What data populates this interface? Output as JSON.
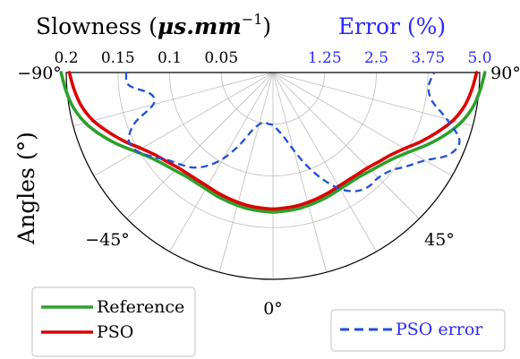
{
  "chart_data": {
    "type": "line",
    "projection": "polar-half",
    "left_axis": {
      "title": "Slowness (μs.mm⁻¹)",
      "title_main": "Slowness (",
      "title_mu": "μs.mm",
      "title_exp": "−1",
      "title_close": ")",
      "range": [
        0,
        0.2
      ],
      "direction": "decreasing-outward-left",
      "tick_labels": [
        "0.2",
        "0.15",
        "0.1",
        "0.05"
      ],
      "tick_values": [
        0.2,
        0.15,
        0.1,
        0.05
      ]
    },
    "right_axis": {
      "title": "Error (%)",
      "range": [
        0,
        5.0
      ],
      "tick_labels": [
        "1.25",
        "2.5",
        "3.75",
        "5.0"
      ],
      "tick_values": [
        1.25,
        2.5,
        3.75,
        5.0
      ],
      "color": "#2a2aff"
    },
    "angle_axis": {
      "label": "Angles (°)",
      "range_deg": [
        -90,
        90
      ],
      "tick_labels": [
        "−90°",
        "−45°",
        "0°",
        "45°",
        "90°"
      ],
      "tick_values": [
        -90,
        -45,
        0,
        45,
        90
      ]
    },
    "grid": true,
    "legends": [
      {
        "placement": "bottom-left",
        "entries": [
          "Reference",
          "PSO"
        ]
      },
      {
        "placement": "bottom-right",
        "entries": [
          "PSO error"
        ]
      }
    ],
    "series": [
      {
        "name": "Reference",
        "color": "#2ca02c",
        "style": "solid",
        "axis": "slowness",
        "points": [
          [
            -90,
            0.205
          ],
          [
            -85,
            0.201
          ],
          [
            -80,
            0.196
          ],
          [
            -75,
            0.188
          ],
          [
            -70,
            0.177
          ],
          [
            -65,
            0.165
          ],
          [
            -60,
            0.153
          ],
          [
            -55,
            0.144
          ],
          [
            -50,
            0.138
          ],
          [
            -45,
            0.134
          ],
          [
            -40,
            0.131
          ],
          [
            -35,
            0.13
          ],
          [
            -30,
            0.13
          ],
          [
            -25,
            0.131
          ],
          [
            -20,
            0.132
          ],
          [
            -15,
            0.133
          ],
          [
            -10,
            0.134
          ],
          [
            -5,
            0.1345
          ],
          [
            0,
            0.135
          ],
          [
            5,
            0.1345
          ],
          [
            10,
            0.134
          ],
          [
            15,
            0.133
          ],
          [
            20,
            0.132
          ],
          [
            25,
            0.131
          ],
          [
            30,
            0.13
          ],
          [
            35,
            0.13
          ],
          [
            40,
            0.131
          ],
          [
            45,
            0.134
          ],
          [
            50,
            0.138
          ],
          [
            55,
            0.144
          ],
          [
            60,
            0.153
          ],
          [
            65,
            0.165
          ],
          [
            70,
            0.177
          ],
          [
            75,
            0.188
          ],
          [
            80,
            0.196
          ],
          [
            85,
            0.201
          ],
          [
            90,
            0.205
          ]
        ]
      },
      {
        "name": "PSO",
        "color": "#dd0000",
        "style": "solid",
        "axis": "slowness",
        "points": [
          [
            -90,
            0.197
          ],
          [
            -85,
            0.193
          ],
          [
            -80,
            0.188
          ],
          [
            -75,
            0.18
          ],
          [
            -70,
            0.169
          ],
          [
            -65,
            0.158
          ],
          [
            -60,
            0.147
          ],
          [
            -55,
            0.139
          ],
          [
            -50,
            0.134
          ],
          [
            -45,
            0.13
          ],
          [
            -40,
            0.128
          ],
          [
            -35,
            0.127
          ],
          [
            -30,
            0.127
          ],
          [
            -25,
            0.128
          ],
          [
            -20,
            0.129
          ],
          [
            -15,
            0.13
          ],
          [
            -10,
            0.131
          ],
          [
            -5,
            0.1315
          ],
          [
            0,
            0.132
          ],
          [
            5,
            0.1315
          ],
          [
            10,
            0.131
          ],
          [
            15,
            0.13
          ],
          [
            20,
            0.129
          ],
          [
            25,
            0.128
          ],
          [
            30,
            0.127
          ],
          [
            35,
            0.127
          ],
          [
            40,
            0.128
          ],
          [
            45,
            0.13
          ],
          [
            50,
            0.134
          ],
          [
            55,
            0.139
          ],
          [
            60,
            0.147
          ],
          [
            65,
            0.158
          ],
          [
            70,
            0.169
          ],
          [
            75,
            0.18
          ],
          [
            80,
            0.188
          ],
          [
            85,
            0.193
          ],
          [
            90,
            0.197
          ]
        ]
      },
      {
        "name": "PSO error",
        "color": "#1f4fd8",
        "style": "dashed",
        "axis": "error",
        "points": [
          [
            -90,
            3.55
          ],
          [
            -85,
            3.5
          ],
          [
            -80,
            3.0
          ],
          [
            -75,
            3.0
          ],
          [
            -70,
            3.55
          ],
          [
            -65,
            3.85
          ],
          [
            -60,
            3.8
          ],
          [
            -55,
            3.55
          ],
          [
            -50,
            3.3
          ],
          [
            -45,
            3.15
          ],
          [
            -40,
            3.0
          ],
          [
            -35,
            2.75
          ],
          [
            -30,
            2.4
          ],
          [
            -25,
            1.95
          ],
          [
            -20,
            1.5
          ],
          [
            -15,
            1.3
          ],
          [
            -10,
            1.22
          ],
          [
            -5,
            1.25
          ],
          [
            0,
            1.27
          ],
          [
            5,
            1.4
          ],
          [
            10,
            1.6
          ],
          [
            15,
            1.95
          ],
          [
            20,
            2.4
          ],
          [
            25,
            2.85
          ],
          [
            30,
            3.25
          ],
          [
            35,
            3.5
          ],
          [
            40,
            3.6
          ],
          [
            45,
            3.6
          ],
          [
            50,
            3.7
          ],
          [
            55,
            3.95
          ],
          [
            60,
            4.25
          ],
          [
            65,
            4.7
          ],
          [
            70,
            4.8
          ],
          [
            75,
            4.35
          ],
          [
            80,
            3.9
          ],
          [
            85,
            3.78
          ],
          [
            90,
            3.9
          ]
        ]
      }
    ]
  }
}
